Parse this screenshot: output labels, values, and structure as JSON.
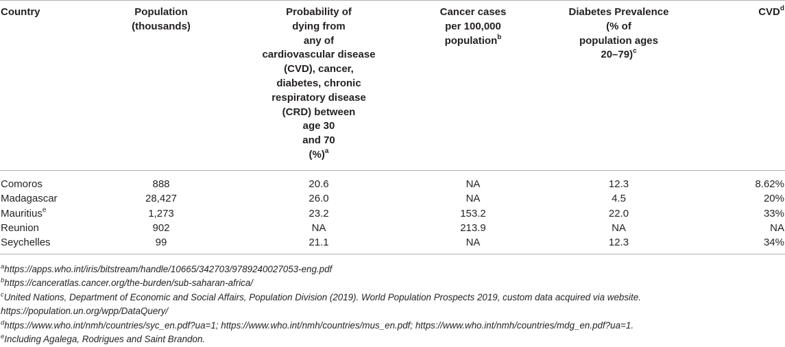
{
  "table": {
    "headers": [
      {
        "lines": [
          "Country"
        ],
        "sup": ""
      },
      {
        "lines": [
          "Population",
          "(thousands)"
        ],
        "sup": ""
      },
      {
        "lines": [
          "Probability of",
          "dying from",
          "any of",
          "cardiovascular disease",
          "(CVD), cancer,",
          "diabetes, chronic",
          "respiratory disease",
          "(CRD) between",
          "age 30",
          "and 70",
          "(%)"
        ],
        "sup": "a"
      },
      {
        "lines": [
          "Cancer cases",
          "per 100,000",
          "population"
        ],
        "sup": "b"
      },
      {
        "lines": [
          "Diabetes Prevalence",
          "(% of",
          "population ages",
          "20–79)"
        ],
        "sup": "c"
      },
      {
        "lines": [
          "CVD"
        ],
        "sup": "d"
      }
    ],
    "rows": [
      {
        "country": "Comoros",
        "country_sup": "",
        "population": "888",
        "probability": "20.6",
        "cancer": "NA",
        "diabetes": "12.3",
        "cvd": "8.62%"
      },
      {
        "country": "Madagascar",
        "country_sup": "",
        "population": "28,427",
        "probability": "26.0",
        "cancer": "NA",
        "diabetes": "4.5",
        "cvd": "20%"
      },
      {
        "country": "Mauritius",
        "country_sup": "e",
        "population": "1,273",
        "probability": "23.2",
        "cancer": "153.2",
        "diabetes": "22.0",
        "cvd": "33%"
      },
      {
        "country": "Reunion",
        "country_sup": "",
        "population": "902",
        "probability": "NA",
        "cancer": "213.9",
        "diabetes": "NA",
        "cvd": "NA"
      },
      {
        "country": "Seychelles",
        "country_sup": "",
        "population": "99",
        "probability": "21.1",
        "cancer": "NA",
        "diabetes": "12.3",
        "cvd": "34%"
      }
    ]
  },
  "footnotes": [
    {
      "mark": "a",
      "text": "https://apps.who.int/iris/bitstream/handle/10665/342703/9789240027053-eng.pdf"
    },
    {
      "mark": "b",
      "text": "https://canceratlas.cancer.org/the-burden/sub-saharan-africa/"
    },
    {
      "mark": "c",
      "text": "United Nations, Department of Economic and Social Affairs, Population Division (2019). World Population Prospects 2019, custom data acquired via website. https://population.un.org/wpp/DataQuery/"
    },
    {
      "mark": "d",
      "text": "https://www.who.int/nmh/countries/syc_en.pdf?ua=1; https://www.who.int/nmh/countries/mus_en.pdf; https://www.who.int/nmh/countries/mdg_en.pdf?ua=1."
    },
    {
      "mark": "e",
      "text": "Including Agalega, Rodrigues and Saint Brandon."
    }
  ]
}
